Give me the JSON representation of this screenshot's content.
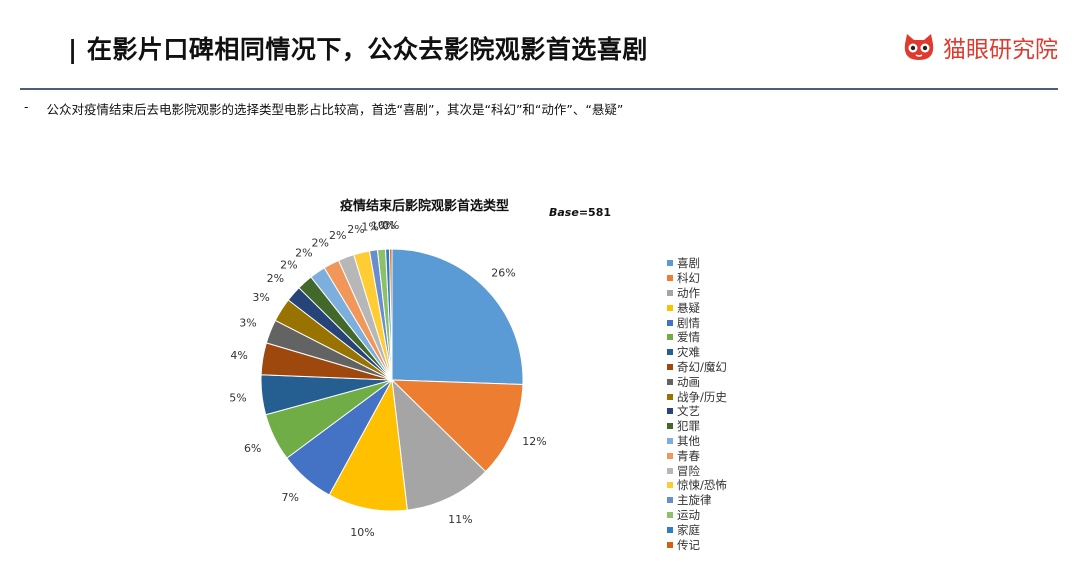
{
  "header": {
    "title": "| 在影片口碑相同情况下，公众去影院观影首选喜剧",
    "brand_name": "猫眼研究院",
    "brand_color": "#e03a2f"
  },
  "summary": {
    "bullet": "-",
    "text": "公众对疫情结束后去电影院观影的选择类型电影占比较高，首选“喜剧”，其次是“科幻”和“动作”、“悬疑”"
  },
  "chart_data": {
    "type": "pie",
    "title": "疫情结束后影院观影首选类型",
    "base_label": "Base",
    "base_value": "=581",
    "categories": [
      "喜剧",
      "科幻",
      "动作",
      "悬疑",
      "剧情",
      "爱情",
      "灾难",
      "奇幻/魔幻",
      "动画",
      "战争/历史",
      "文艺",
      "犯罪",
      "其他",
      "青春",
      "冒险",
      "惊悚/恐怖",
      "主旋律",
      "运动",
      "家庭",
      "传记"
    ],
    "values": [
      26,
      12,
      11,
      10,
      7,
      6,
      5,
      4,
      3,
      3,
      2,
      2,
      2,
      2,
      2,
      2,
      1,
      1,
      0.5,
      0.3
    ],
    "data_labels": [
      "26%",
      "12%",
      "11%",
      "10%",
      "7%",
      "6%",
      "5%",
      "4%",
      "3%",
      "3%",
      "2%",
      "2%",
      "2%",
      "2%",
      "2%",
      "2%",
      "1%",
      "1%",
      "0%",
      "0%"
    ],
    "colors": [
      "#5b9bd5",
      "#ed7d31",
      "#a5a5a5",
      "#ffc000",
      "#4472c4",
      "#70ad47",
      "#255e91",
      "#9e480e",
      "#636363",
      "#997300",
      "#264478",
      "#43682b",
      "#7cafdd",
      "#f1975a",
      "#b7b7b7",
      "#ffcd33",
      "#698ed0",
      "#8cc168",
      "#327dc2",
      "#d26012"
    ],
    "legend_position": "right"
  }
}
